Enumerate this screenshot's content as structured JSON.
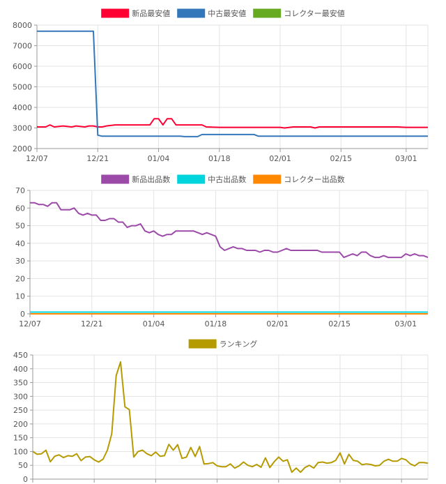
{
  "chart_data": [
    {
      "type": "line",
      "legend_position": "top",
      "grid": true,
      "x_ticks": [
        "12/07",
        "12/21",
        "01/04",
        "01/18",
        "02/01",
        "02/15",
        "03/01"
      ],
      "x_range": [
        "12/07",
        "03/06"
      ],
      "ylim": [
        2000,
        8000
      ],
      "y_ticks": [
        2000,
        3000,
        4000,
        5000,
        6000,
        7000,
        8000
      ],
      "series": [
        {
          "name": "新品最安値",
          "color": "#ff0033",
          "points": [
            [
              "12/07",
              3050
            ],
            [
              "12/09",
              3050
            ],
            [
              "12/10",
              3150
            ],
            [
              "12/11",
              3050
            ],
            [
              "12/13",
              3100
            ],
            [
              "12/15",
              3050
            ],
            [
              "12/16",
              3100
            ],
            [
              "12/18",
              3050
            ],
            [
              "12/19",
              3100
            ],
            [
              "12/20",
              3100
            ],
            [
              "12/21",
              3050
            ],
            [
              "12/22",
              3050
            ],
            [
              "12/23",
              3100
            ],
            [
              "12/25",
              3150
            ],
            [
              "01/02",
              3150
            ],
            [
              "01/03",
              3450
            ],
            [
              "01/04",
              3450
            ],
            [
              "01/05",
              3150
            ],
            [
              "01/06",
              3450
            ],
            [
              "01/07",
              3450
            ],
            [
              "01/08",
              3150
            ],
            [
              "01/14",
              3150
            ],
            [
              "01/15",
              3050
            ],
            [
              "01/18",
              3030
            ],
            [
              "01/27",
              3030
            ],
            [
              "02/01",
              3030
            ],
            [
              "02/02",
              3000
            ],
            [
              "02/04",
              3050
            ],
            [
              "02/08",
              3050
            ],
            [
              "02/09",
              3000
            ],
            [
              "02/10",
              3050
            ],
            [
              "02/28",
              3050
            ],
            [
              "03/01",
              3030
            ],
            [
              "03/06",
              3030
            ]
          ]
        },
        {
          "name": "中古最安値",
          "color": "#3377bb",
          "points": [
            [
              "12/07",
              7700
            ],
            [
              "12/20",
              7700
            ],
            [
              "12/21",
              2650
            ],
            [
              "12/22",
              2600
            ],
            [
              "01/09",
              2600
            ],
            [
              "01/10",
              2580
            ],
            [
              "01/13",
              2580
            ],
            [
              "01/14",
              2680
            ],
            [
              "01/26",
              2680
            ],
            [
              "01/27",
              2600
            ],
            [
              "03/06",
              2600
            ]
          ]
        },
        {
          "name": "コレクター最安値",
          "color": "#66aa22",
          "points": []
        }
      ]
    },
    {
      "type": "line",
      "legend_position": "top",
      "grid": true,
      "x_ticks": [
        "12/07",
        "12/21",
        "01/04",
        "01/18",
        "02/01",
        "02/15",
        "03/01"
      ],
      "x_range": [
        "12/07",
        "03/06"
      ],
      "ylim": [
        0,
        70
      ],
      "y_ticks": [
        0,
        10,
        20,
        30,
        40,
        50,
        60,
        70
      ],
      "series": [
        {
          "name": "新品出品数",
          "color": "#9b4aa8",
          "points": [
            [
              "12/07",
              63
            ],
            [
              "12/08",
              63
            ],
            [
              "12/09",
              62
            ],
            [
              "12/10",
              62
            ],
            [
              "12/11",
              61
            ],
            [
              "12/12",
              63
            ],
            [
              "12/13",
              63
            ],
            [
              "12/14",
              59
            ],
            [
              "12/15",
              59
            ],
            [
              "12/16",
              59
            ],
            [
              "12/17",
              60
            ],
            [
              "12/18",
              57
            ],
            [
              "12/19",
              56
            ],
            [
              "12/20",
              57
            ],
            [
              "12/21",
              56
            ],
            [
              "12/22",
              56
            ],
            [
              "12/23",
              53
            ],
            [
              "12/24",
              53
            ],
            [
              "12/25",
              54
            ],
            [
              "12/26",
              54
            ],
            [
              "12/27",
              52
            ],
            [
              "12/28",
              52
            ],
            [
              "12/29",
              49
            ],
            [
              "12/30",
              50
            ],
            [
              "12/31",
              50
            ],
            [
              "01/01",
              51
            ],
            [
              "01/02",
              47
            ],
            [
              "01/03",
              46
            ],
            [
              "01/04",
              47
            ],
            [
              "01/05",
              45
            ],
            [
              "01/06",
              44
            ],
            [
              "01/07",
              45
            ],
            [
              "01/08",
              45
            ],
            [
              "01/09",
              47
            ],
            [
              "01/10",
              47
            ],
            [
              "01/11",
              47
            ],
            [
              "01/12",
              47
            ],
            [
              "01/13",
              47
            ],
            [
              "01/14",
              46
            ],
            [
              "01/15",
              45
            ],
            [
              "01/16",
              46
            ],
            [
              "01/17",
              45
            ],
            [
              "01/18",
              44
            ],
            [
              "01/19",
              38
            ],
            [
              "01/20",
              36
            ],
            [
              "01/21",
              37
            ],
            [
              "01/22",
              38
            ],
            [
              "01/23",
              37
            ],
            [
              "01/24",
              37
            ],
            [
              "01/25",
              36
            ],
            [
              "01/26",
              36
            ],
            [
              "01/27",
              36
            ],
            [
              "01/28",
              35
            ],
            [
              "01/29",
              36
            ],
            [
              "01/30",
              36
            ],
            [
              "01/31",
              35
            ],
            [
              "02/01",
              35
            ],
            [
              "02/02",
              36
            ],
            [
              "02/03",
              37
            ],
            [
              "02/04",
              36
            ],
            [
              "02/06",
              36
            ],
            [
              "02/08",
              36
            ],
            [
              "02/10",
              36
            ],
            [
              "02/11",
              35
            ],
            [
              "02/13",
              35
            ],
            [
              "02/15",
              35
            ],
            [
              "02/16",
              32
            ],
            [
              "02/17",
              33
            ],
            [
              "02/18",
              34
            ],
            [
              "02/19",
              33
            ],
            [
              "02/20",
              35
            ],
            [
              "02/21",
              35
            ],
            [
              "02/22",
              33
            ],
            [
              "02/23",
              32
            ],
            [
              "02/24",
              32
            ],
            [
              "02/25",
              33
            ],
            [
              "02/26",
              32
            ],
            [
              "02/28",
              32
            ],
            [
              "02/29",
              32
            ],
            [
              "03/01",
              34
            ],
            [
              "03/02",
              33
            ],
            [
              "03/03",
              34
            ],
            [
              "03/04",
              33
            ],
            [
              "03/05",
              33
            ],
            [
              "03/06",
              32
            ]
          ]
        },
        {
          "name": "中古出品数",
          "color": "#00d4dd",
          "points": [
            [
              "12/07",
              1
            ],
            [
              "03/06",
              1
            ]
          ]
        },
        {
          "name": "コレクター出品数",
          "color": "#ff8800",
          "points": [
            [
              "12/07",
              0
            ],
            [
              "03/06",
              0
            ]
          ]
        }
      ]
    },
    {
      "type": "line",
      "legend_position": "top",
      "grid": true,
      "x_range": [
        "12/07",
        "03/06"
      ],
      "ylim": [
        0,
        450
      ],
      "y_ticks": [
        0,
        50,
        100,
        150,
        200,
        250,
        300,
        350,
        400,
        450
      ],
      "series": [
        {
          "name": "ランキング",
          "color": "#b59a00",
          "points": [
            [
              "12/07",
              100
            ],
            [
              "12/08",
              90
            ],
            [
              "12/09",
              92
            ],
            [
              "12/10",
              105
            ],
            [
              "12/11",
              63
            ],
            [
              "12/12",
              83
            ],
            [
              "12/13",
              88
            ],
            [
              "12/14",
              78
            ],
            [
              "12/15",
              85
            ],
            [
              "12/16",
              83
            ],
            [
              "12/17",
              92
            ],
            [
              "12/18",
              67
            ],
            [
              "12/19",
              80
            ],
            [
              "12/20",
              82
            ],
            [
              "12/21",
              70
            ],
            [
              "12/22",
              62
            ],
            [
              "12/23",
              72
            ],
            [
              "12/24",
              105
            ],
            [
              "12/25",
              165
            ],
            [
              "12/26",
              375
            ],
            [
              "12/27",
              425
            ],
            [
              "12/28",
              262
            ],
            [
              "12/29",
              252
            ],
            [
              "12/30",
              80
            ],
            [
              "12/31",
              100
            ],
            [
              "01/01",
              105
            ],
            [
              "01/02",
              92
            ],
            [
              "01/03",
              85
            ],
            [
              "01/04",
              98
            ],
            [
              "01/05",
              83
            ],
            [
              "01/06",
              85
            ],
            [
              "01/07",
              126
            ],
            [
              "01/08",
              105
            ],
            [
              "01/09",
              125
            ],
            [
              "01/10",
              75
            ],
            [
              "01/11",
              80
            ],
            [
              "01/12",
              115
            ],
            [
              "01/13",
              82
            ],
            [
              "01/14",
              118
            ],
            [
              "01/15",
              55
            ],
            [
              "01/16",
              56
            ],
            [
              "01/17",
              60
            ],
            [
              "01/18",
              48
            ],
            [
              "01/19",
              45
            ],
            [
              "01/20",
              45
            ],
            [
              "01/21",
              55
            ],
            [
              "01/22",
              40
            ],
            [
              "01/23",
              48
            ],
            [
              "01/24",
              62
            ],
            [
              "01/25",
              50
            ],
            [
              "01/26",
              45
            ],
            [
              "01/27",
              53
            ],
            [
              "01/28",
              43
            ],
            [
              "01/29",
              77
            ],
            [
              "01/30",
              42
            ],
            [
              "01/31",
              63
            ],
            [
              "02/01",
              80
            ],
            [
              "02/02",
              65
            ],
            [
              "02/03",
              70
            ],
            [
              "02/04",
              25
            ],
            [
              "02/05",
              40
            ],
            [
              "02/06",
              25
            ],
            [
              "02/07",
              42
            ],
            [
              "02/08",
              50
            ],
            [
              "02/09",
              40
            ],
            [
              "02/10",
              60
            ],
            [
              "02/11",
              62
            ],
            [
              "02/12",
              58
            ],
            [
              "02/13",
              60
            ],
            [
              "02/14",
              68
            ],
            [
              "02/15",
              95
            ],
            [
              "02/16",
              55
            ],
            [
              "02/17",
              90
            ],
            [
              "02/18",
              68
            ],
            [
              "02/19",
              65
            ],
            [
              "02/20",
              52
            ],
            [
              "02/21",
              55
            ],
            [
              "02/22",
              53
            ],
            [
              "02/23",
              48
            ],
            [
              "02/24",
              50
            ],
            [
              "02/25",
              65
            ],
            [
              "02/26",
              72
            ],
            [
              "02/27",
              65
            ],
            [
              "02/28",
              65
            ],
            [
              "02/29",
              75
            ],
            [
              "03/01",
              70
            ],
            [
              "03/02",
              55
            ],
            [
              "03/03",
              48
            ],
            [
              "03/04",
              60
            ],
            [
              "03/05",
              60
            ],
            [
              "03/06",
              58
            ]
          ]
        }
      ]
    }
  ]
}
